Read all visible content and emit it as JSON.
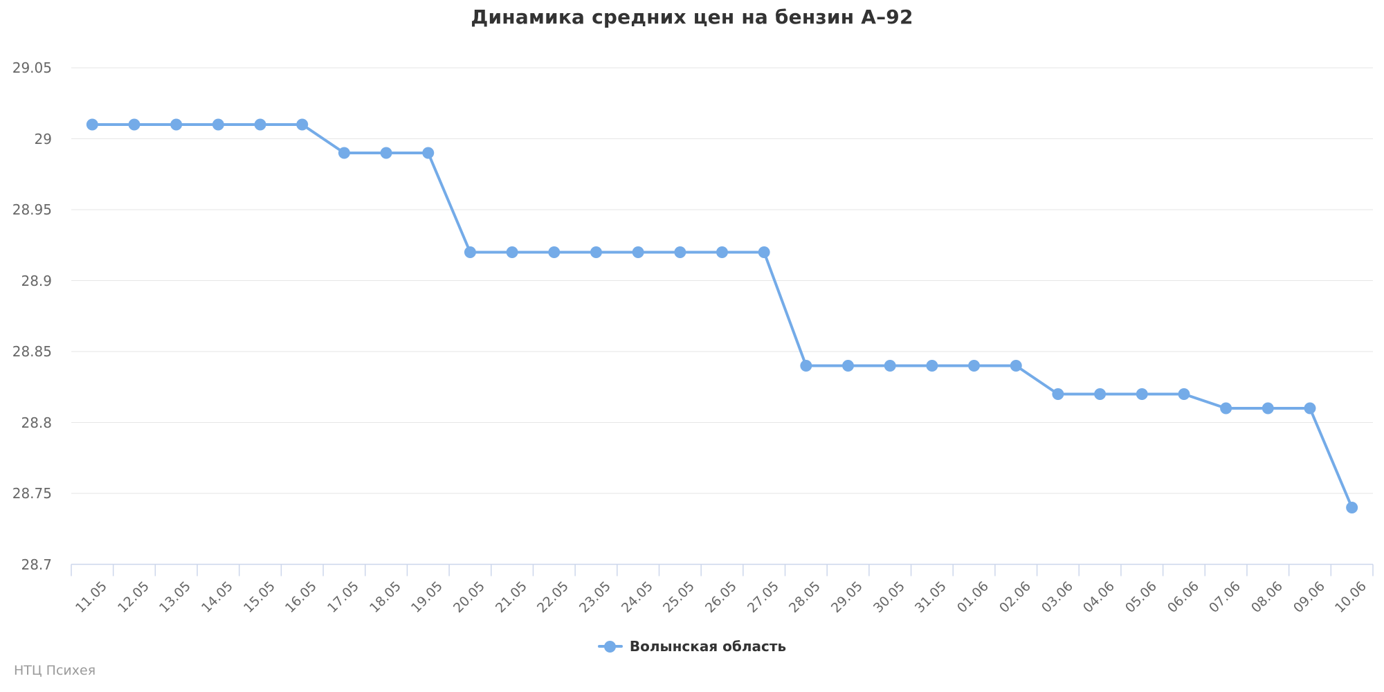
{
  "title": "Динамика средних цен на бензин А–92",
  "credit": "НТЦ Психея",
  "legend": {
    "label": "Волынская область"
  },
  "colors": {
    "series": "#74abe8",
    "grid": "#e6e6e6",
    "axis": "#ccd6eb",
    "label": "#666666",
    "title": "#333333",
    "legend_text": "#333333",
    "credit": "#9a9a9a",
    "background": "#ffffff"
  },
  "chart_data": {
    "type": "line",
    "title": "Динамика средних цен на бензин А–92",
    "xlabel": "",
    "ylabel": "",
    "grid": true,
    "legend_position": "bottom-center",
    "ylim": [
      28.7,
      29.05
    ],
    "ytick_step": 0.05,
    "yticks": [
      29.05,
      29,
      28.95,
      28.9,
      28.85,
      28.8,
      28.75,
      28.7
    ],
    "categories": [
      "11.05",
      "12.05",
      "13.05",
      "14.05",
      "15.05",
      "16.05",
      "17.05",
      "18.05",
      "19.05",
      "20.05",
      "21.05",
      "22.05",
      "23.05",
      "24.05",
      "25.05",
      "26.05",
      "27.05",
      "28.05",
      "29.05",
      "30.05",
      "31.05",
      "01.06",
      "02.06",
      "03.06",
      "04.06",
      "05.06",
      "06.06",
      "07.06",
      "08.06",
      "09.06",
      "10.06"
    ],
    "series": [
      {
        "name": "Волынская область",
        "values": [
          29.01,
          29.01,
          29.01,
          29.01,
          29.01,
          29.01,
          28.99,
          28.99,
          28.99,
          28.92,
          28.92,
          28.92,
          28.92,
          28.92,
          28.92,
          28.92,
          28.92,
          28.84,
          28.84,
          28.84,
          28.84,
          28.84,
          28.84,
          28.82,
          28.82,
          28.82,
          28.82,
          28.81,
          28.81,
          28.81,
          28.74
        ]
      }
    ]
  }
}
